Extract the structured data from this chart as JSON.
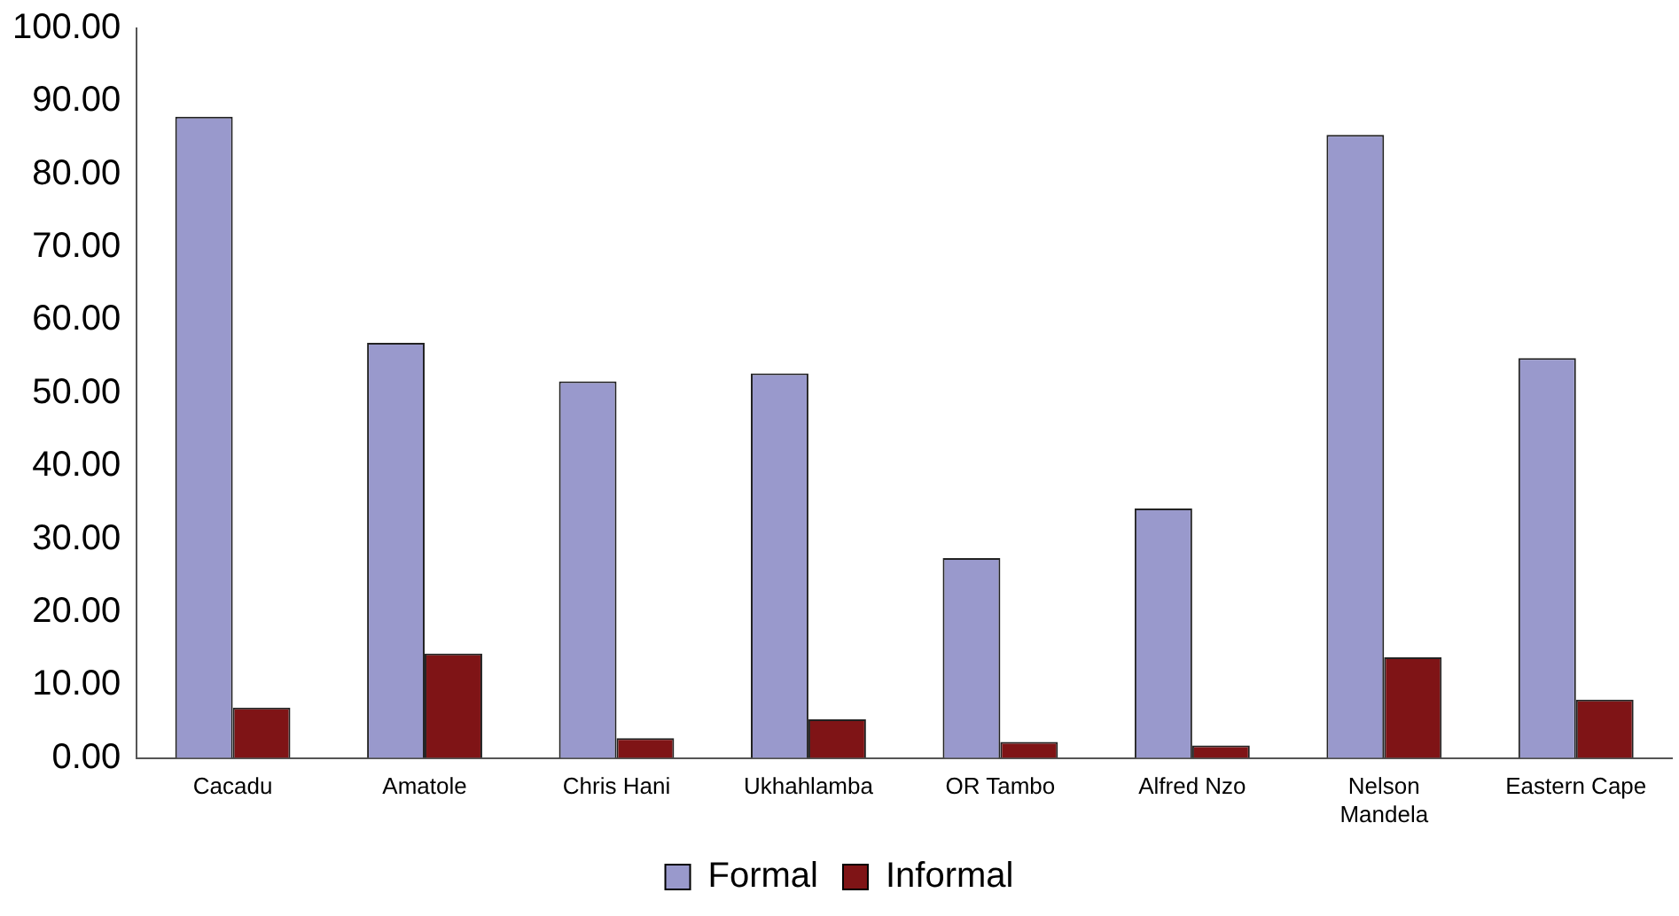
{
  "chart_data": {
    "type": "bar",
    "categories": [
      "Cacadu",
      "Amatole",
      "Chris Hani",
      "Ukhahlamba",
      "OR Tambo",
      "Alfred Nzo",
      "Nelson Mandela",
      "Eastern Cape"
    ],
    "series": [
      {
        "name": "Formal",
        "color": "#9999cc",
        "values": [
          87.9,
          56.9,
          51.6,
          52.7,
          27.4,
          34.2,
          85.4,
          54.8
        ]
      },
      {
        "name": "Informal",
        "color": "#7f1416",
        "values": [
          6.9,
          14.3,
          2.7,
          5.3,
          2.2,
          1.7,
          13.8,
          8.0
        ]
      }
    ],
    "ylim": [
      0,
      100
    ],
    "yticks": [
      {
        "value": 0,
        "label": "0.00"
      },
      {
        "value": 10,
        "label": "10.00"
      },
      {
        "value": 20,
        "label": "20.00"
      },
      {
        "value": 30,
        "label": "30.00"
      },
      {
        "value": 40,
        "label": "40.00"
      },
      {
        "value": 50,
        "label": "50.00"
      },
      {
        "value": 60,
        "label": "60.00"
      },
      {
        "value": 70,
        "label": "70.00"
      },
      {
        "value": 80,
        "label": "80.00"
      },
      {
        "value": 90,
        "label": "90.00"
      },
      {
        "value": 100,
        "label": "100.00"
      }
    ],
    "grid": false,
    "legend": "bottom"
  }
}
